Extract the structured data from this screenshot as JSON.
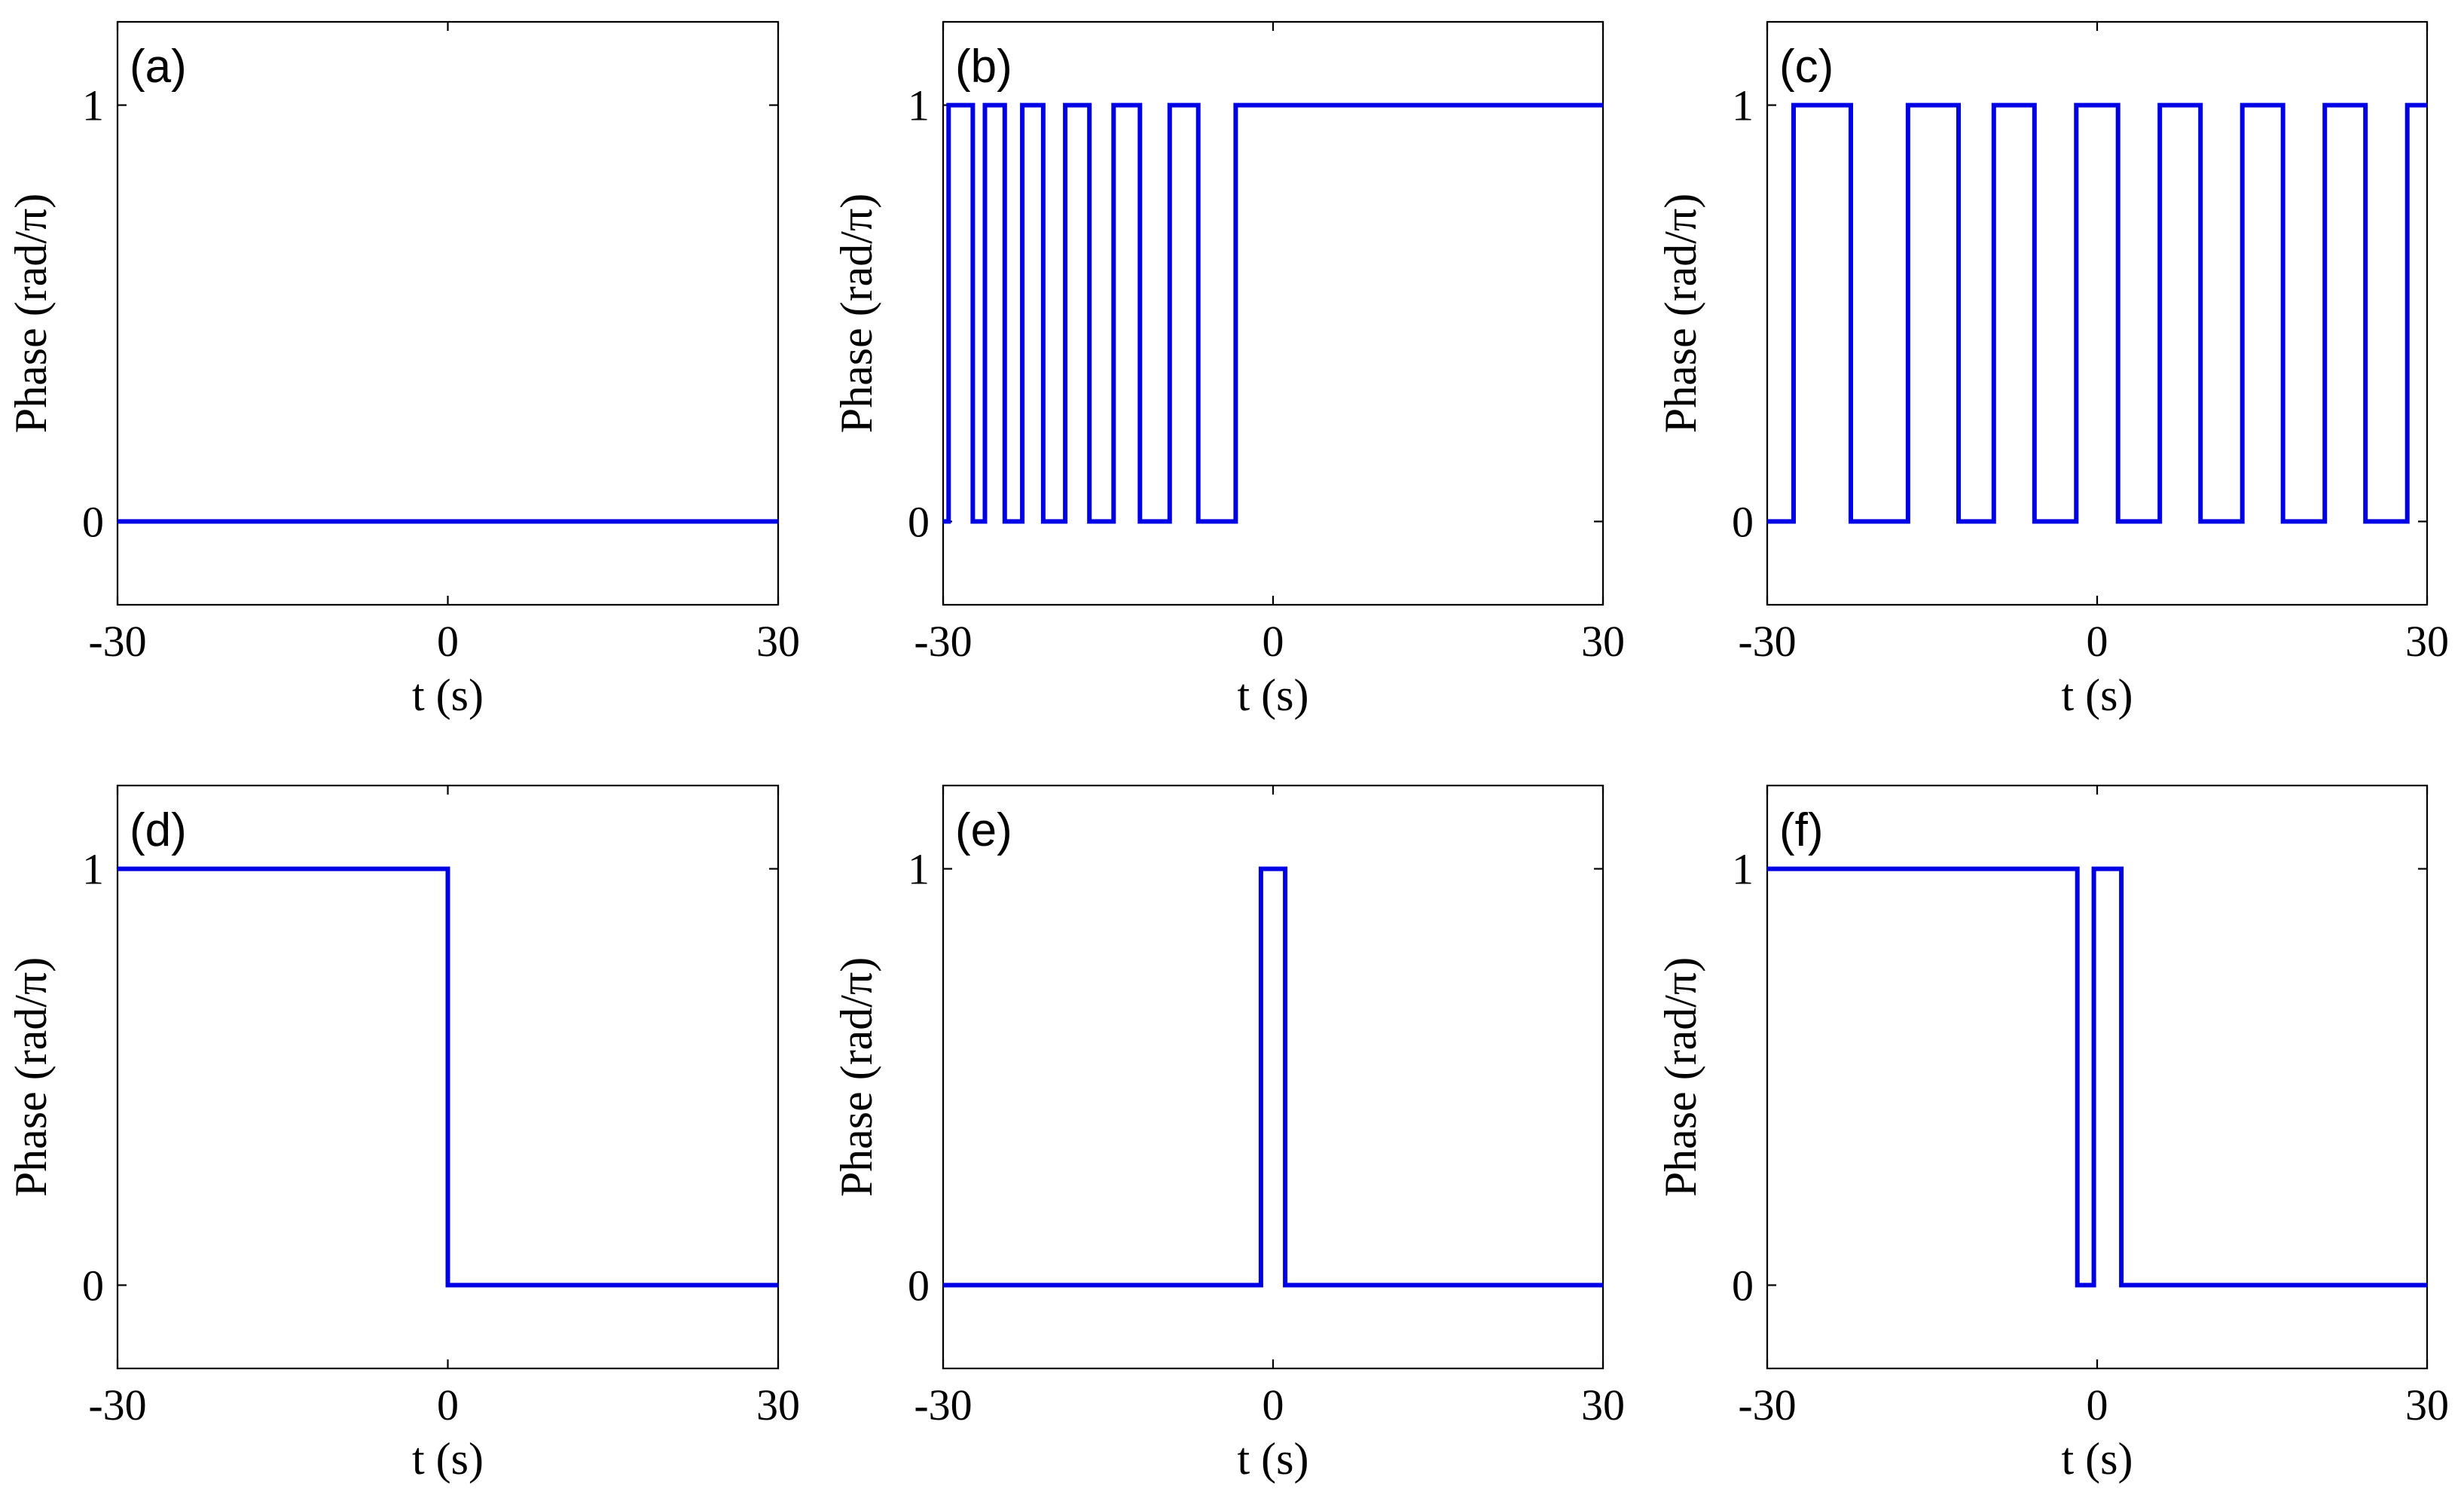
{
  "chart_data": [
    {
      "type": "line",
      "panel_label": "(a)",
      "xlabel": "t (s)",
      "ylabel": "Phase (rad/π)",
      "xlim": [
        -30,
        30
      ],
      "ylim": [
        -0.2,
        1.2
      ],
      "xticks": [
        "-30",
        "0",
        "30"
      ],
      "yticks": [
        "0",
        "1"
      ],
      "color": "#0000e6",
      "x": [
        -30,
        30
      ],
      "y": [
        0,
        0
      ]
    },
    {
      "type": "line",
      "panel_label": "(b)",
      "xlabel": "t (s)",
      "ylabel": "Phase (rad/π)",
      "xlim": [
        -30,
        30
      ],
      "ylim": [
        -0.2,
        1.2
      ],
      "xticks": [
        "-30",
        "0",
        "30"
      ],
      "yticks": [
        "0",
        "1"
      ],
      "color": "#0000e6",
      "x": [
        -30,
        -29.5,
        -29.5,
        -27.3,
        -27.3,
        -26.2,
        -26.2,
        -24.4,
        -24.4,
        -22.8,
        -22.8,
        -20.9,
        -20.9,
        -18.9,
        -18.9,
        -16.7,
        -16.7,
        -14.5,
        -14.5,
        -12.1,
        -12.1,
        -9.4,
        -9.4,
        -6.8,
        -6.8,
        -3.4,
        -3.4,
        30
      ],
      "y": [
        0,
        0,
        1,
        1,
        0,
        0,
        1,
        1,
        0,
        0,
        1,
        1,
        0,
        0,
        1,
        1,
        0,
        0,
        1,
        1,
        0,
        0,
        1,
        1,
        0,
        0,
        1,
        1
      ]
    },
    {
      "type": "line",
      "panel_label": "(c)",
      "xlabel": "t (s)",
      "ylabel": "Phase (rad/π)",
      "xlim": [
        -30,
        30
      ],
      "ylim": [
        -0.2,
        1.2
      ],
      "xticks": [
        "-30",
        "0",
        "30"
      ],
      "yticks": [
        "0",
        "1"
      ],
      "color": "#0000e6",
      "x": [
        -30,
        -27.6,
        -27.6,
        -22.4,
        -22.4,
        -17.2,
        -17.2,
        -12.6,
        -12.6,
        -9.4,
        -9.4,
        -5.7,
        -5.7,
        -1.9,
        -1.9,
        1.9,
        1.9,
        5.7,
        5.7,
        9.4,
        9.4,
        13.2,
        13.2,
        16.9,
        16.9,
        20.7,
        20.7,
        24.4,
        24.4,
        28.2,
        28.2,
        30
      ],
      "y": [
        0,
        0,
        1,
        1,
        0,
        0,
        1,
        1,
        0,
        0,
        1,
        1,
        0,
        0,
        1,
        1,
        0,
        0,
        1,
        1,
        0,
        0,
        1,
        1,
        0,
        0,
        1,
        1,
        0,
        0,
        1,
        1
      ]
    },
    {
      "type": "line",
      "panel_label": "(d)",
      "xlabel": "t (s)",
      "ylabel": "Phase (rad/π)",
      "xlim": [
        -30,
        30
      ],
      "ylim": [
        -0.2,
        1.2
      ],
      "xticks": [
        "-30",
        "0",
        "30"
      ],
      "yticks": [
        "0",
        "1"
      ],
      "color": "#0000e6",
      "x": [
        -30,
        0,
        0,
        30
      ],
      "y": [
        1,
        1,
        0,
        0
      ]
    },
    {
      "type": "line",
      "panel_label": "(e)",
      "xlabel": "t (s)",
      "ylabel": "Phase (rad/π)",
      "xlim": [
        -30,
        30
      ],
      "ylim": [
        -0.2,
        1.2
      ],
      "xticks": [
        "-30",
        "0",
        "30"
      ],
      "yticks": [
        "0",
        "1"
      ],
      "color": "#0000e6",
      "x": [
        -30,
        -1.1,
        -1.1,
        1.1,
        1.1,
        30
      ],
      "y": [
        0,
        0,
        1,
        1,
        0,
        0
      ]
    },
    {
      "type": "line",
      "panel_label": "(f)",
      "xlabel": "t (s)",
      "ylabel": "Phase (rad/π)",
      "xlim": [
        -30,
        30
      ],
      "ylim": [
        -0.2,
        1.2
      ],
      "xticks": [
        "-30",
        "0",
        "30"
      ],
      "yticks": [
        "0",
        "1"
      ],
      "color": "#0000e6",
      "x": [
        -30,
        -1.8,
        -1.8,
        -0.3,
        -0.3,
        2.2,
        2.2,
        30
      ],
      "y": [
        1,
        1,
        0,
        0,
        1,
        1,
        0,
        0
      ]
    }
  ]
}
